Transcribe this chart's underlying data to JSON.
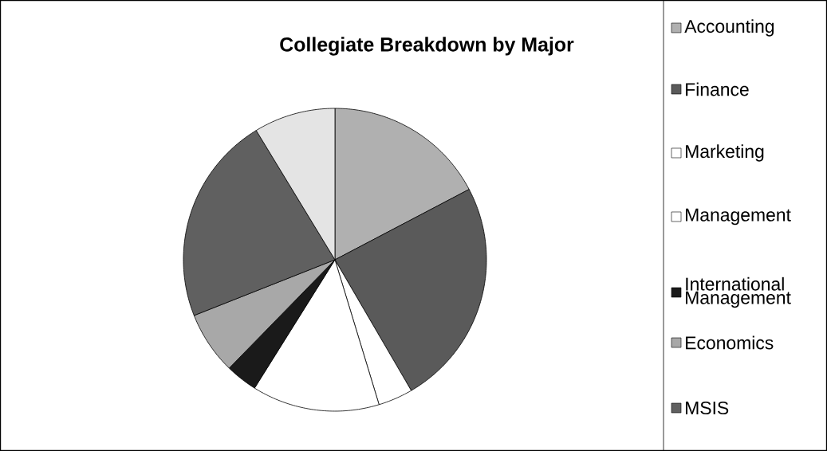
{
  "chart_data": {
    "type": "pie",
    "title": "Collegiate Breakdown by Major",
    "categories": [
      "Accounting",
      "Finance",
      "Marketing",
      "Management",
      "International Management",
      "Economics",
      "MSIS",
      null
    ],
    "values": [
      17.3,
      24.3,
      3.7,
      13.6,
      3.4,
      6.7,
      22.3,
      8.7
    ],
    "colors": [
      "#b0b0b0",
      "#5a5a5a",
      "#ffffff",
      "#ffffff",
      "#1a1a1a",
      "#a8a8a8",
      "#606060",
      "#e4e4e4"
    ],
    "legend": "right"
  }
}
